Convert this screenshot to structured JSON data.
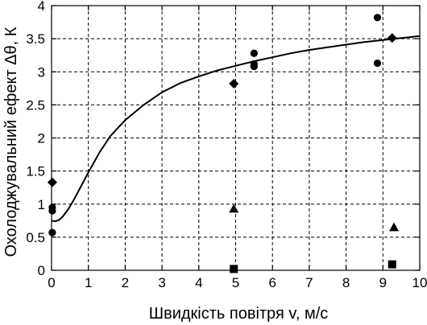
{
  "chart_data": {
    "type": "scatter",
    "title": "",
    "xlabel": "Швидкість повітря  v, м/с",
    "ylabel": "Охолоджувальний ефект Δθ, К",
    "xlim": [
      0,
      10
    ],
    "ylim": [
      0,
      4
    ],
    "xticks": [
      0,
      1,
      2,
      3,
      4,
      5,
      6,
      7,
      8,
      9,
      10
    ],
    "yticks": [
      0,
      0.5,
      1,
      1.5,
      2,
      2.5,
      3,
      3.5,
      4
    ],
    "xtick_labels": [
      "0",
      "1",
      "2",
      "3",
      "4",
      "5",
      "6",
      "7",
      "8",
      "9",
      "10"
    ],
    "ytick_labels": [
      "0",
      "0.5",
      "1",
      "1.5",
      "2",
      "2.5",
      "3",
      "3.5",
      "4"
    ],
    "grid": true,
    "series": [
      {
        "marker": "circle",
        "points": [
          [
            0.02,
            0.95
          ],
          [
            0.02,
            0.9
          ],
          [
            0.02,
            0.57
          ],
          [
            5.5,
            3.28
          ],
          [
            5.5,
            3.12
          ],
          [
            5.5,
            3.08
          ],
          [
            8.85,
            3.82
          ],
          [
            8.85,
            3.13
          ]
        ]
      },
      {
        "marker": "diamond",
        "points": [
          [
            0.02,
            1.33
          ],
          [
            4.95,
            2.82
          ],
          [
            9.25,
            3.51
          ]
        ]
      },
      {
        "marker": "triangle",
        "points": [
          [
            4.95,
            0.93
          ],
          [
            9.3,
            0.65
          ]
        ]
      },
      {
        "marker": "square",
        "points": [
          [
            4.95,
            0.02
          ],
          [
            9.25,
            0.09
          ]
        ]
      },
      {
        "marker": "line",
        "points": [
          [
            0.0,
            0.75
          ],
          [
            0.1,
            0.74
          ],
          [
            0.2,
            0.76
          ],
          [
            0.3,
            0.81
          ],
          [
            0.45,
            0.92
          ],
          [
            0.6,
            1.06
          ],
          [
            0.8,
            1.27
          ],
          [
            1.0,
            1.48
          ],
          [
            1.3,
            1.78
          ],
          [
            1.6,
            2.03
          ],
          [
            2.0,
            2.27
          ],
          [
            2.5,
            2.5
          ],
          [
            3.0,
            2.69
          ],
          [
            3.5,
            2.83
          ],
          [
            4.0,
            2.93
          ],
          [
            4.5,
            3.02
          ],
          [
            5.0,
            3.09
          ],
          [
            5.5,
            3.16
          ],
          [
            6.0,
            3.22
          ],
          [
            6.5,
            3.28
          ],
          [
            7.0,
            3.33
          ],
          [
            7.5,
            3.37
          ],
          [
            8.0,
            3.41
          ],
          [
            8.5,
            3.45
          ],
          [
            9.0,
            3.48
          ],
          [
            9.5,
            3.51
          ],
          [
            10.0,
            3.54
          ]
        ]
      }
    ]
  }
}
